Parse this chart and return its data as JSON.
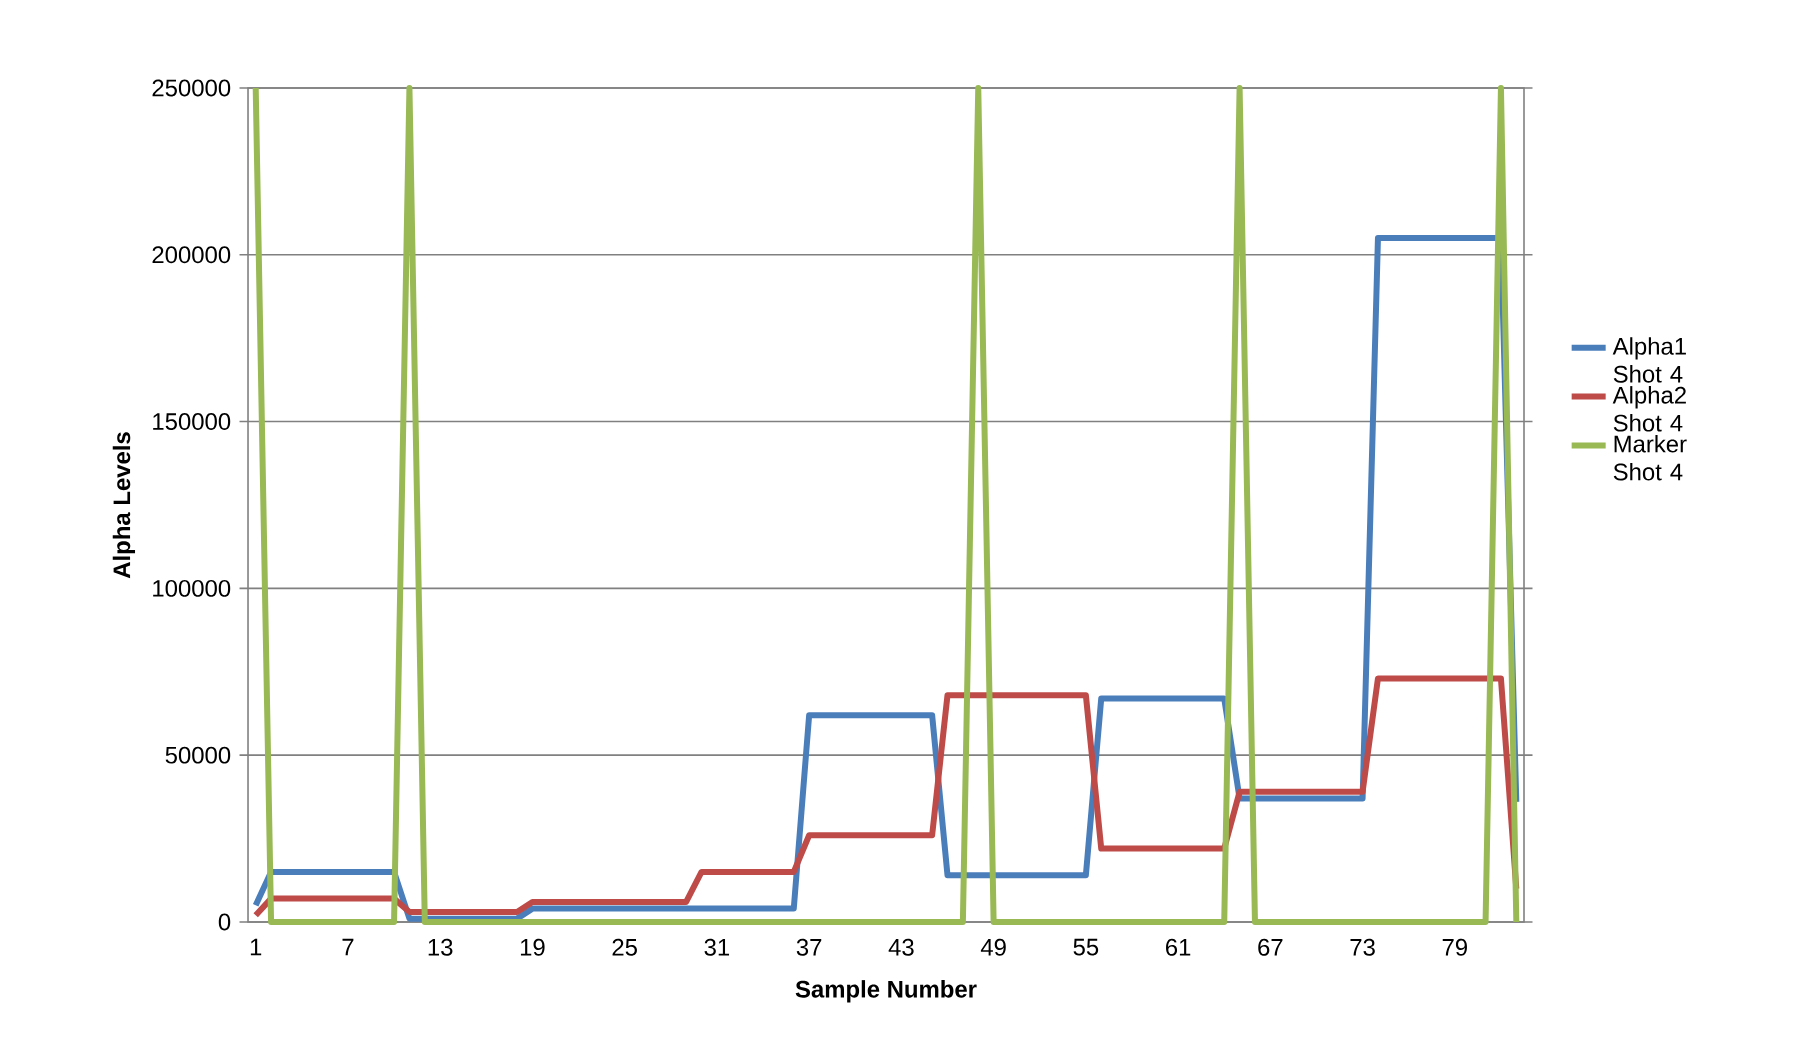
{
  "chart_data": {
    "type": "line",
    "xlabel": "Sample Number",
    "ylabel": "Alpha Levels",
    "categories": [
      "1",
      null,
      null,
      null,
      null,
      null,
      "7",
      null,
      null,
      null,
      null,
      null,
      "13",
      null,
      null,
      null,
      null,
      null,
      "19",
      null,
      null,
      null,
      null,
      null,
      "25",
      null,
      null,
      null,
      null,
      null,
      "31",
      null,
      null,
      null,
      null,
      null,
      "37",
      null,
      null,
      null,
      null,
      null,
      "43",
      null,
      null,
      null,
      null,
      null,
      "49",
      null,
      null,
      null,
      null,
      null,
      "55",
      null,
      null,
      null,
      null,
      null,
      "61",
      null,
      null,
      null,
      null,
      null,
      "67",
      null,
      null,
      null,
      null,
      null,
      "73",
      null,
      null,
      null,
      null,
      null,
      "79",
      null,
      null,
      null,
      null
    ],
    "ylim": [
      0,
      250000
    ],
    "yticks": [
      0,
      50000,
      100000,
      150000,
      200000,
      250000
    ],
    "grid": "y",
    "legend": "right",
    "marker": "none",
    "line_style": "solid",
    "series": [
      {
        "name": "Alpha1 Shot 4",
        "color": "#4a7ebb",
        "values": [
          5000,
          15000,
          15000,
          15000,
          15000,
          15000,
          15000,
          15000,
          15000,
          15000,
          1000,
          1000,
          1000,
          1000,
          1000,
          1000,
          1000,
          1000,
          4000,
          4000,
          4000,
          4000,
          4000,
          4000,
          4000,
          4000,
          4000,
          4000,
          4000,
          4000,
          4000,
          4000,
          4000,
          4000,
          4000,
          4000,
          62000,
          62000,
          62000,
          62000,
          62000,
          62000,
          62000,
          62000,
          62000,
          14000,
          14000,
          14000,
          14000,
          14000,
          14000,
          14000,
          14000,
          14000,
          14000,
          67000,
          67000,
          67000,
          67000,
          67000,
          67000,
          67000,
          67000,
          67000,
          37000,
          37000,
          37000,
          37000,
          37000,
          37000,
          37000,
          37000,
          37000,
          205000,
          205000,
          205000,
          205000,
          205000,
          205000,
          205000,
          205000,
          205000,
          36000
        ]
      },
      {
        "name": "Alpha2 Shot 4",
        "color": "#be4b48",
        "values": [
          2000,
          7000,
          7000,
          7000,
          7000,
          7000,
          7000,
          7000,
          7000,
          7000,
          3000,
          3000,
          3000,
          3000,
          3000,
          3000,
          3000,
          3000,
          6000,
          6000,
          6000,
          6000,
          6000,
          6000,
          6000,
          6000,
          6000,
          6000,
          6000,
          15000,
          15000,
          15000,
          15000,
          15000,
          15000,
          15000,
          26000,
          26000,
          26000,
          26000,
          26000,
          26000,
          26000,
          26000,
          26000,
          68000,
          68000,
          68000,
          68000,
          68000,
          68000,
          68000,
          68000,
          68000,
          68000,
          22000,
          22000,
          22000,
          22000,
          22000,
          22000,
          22000,
          22000,
          22000,
          39000,
          39000,
          39000,
          39000,
          39000,
          39000,
          39000,
          39000,
          39000,
          73000,
          73000,
          73000,
          73000,
          73000,
          73000,
          73000,
          73000,
          73000,
          10000
        ]
      },
      {
        "name": "Marker Shot 4",
        "color": "#98b954",
        "values": [
          250000,
          0,
          0,
          0,
          0,
          0,
          0,
          0,
          0,
          0,
          250000,
          0,
          0,
          0,
          0,
          0,
          0,
          0,
          0,
          0,
          0,
          0,
          0,
          0,
          0,
          0,
          0,
          0,
          0,
          0,
          0,
          0,
          0,
          0,
          0,
          0,
          0,
          0,
          0,
          0,
          0,
          0,
          0,
          0,
          0,
          0,
          0,
          250000,
          0,
          0,
          0,
          0,
          0,
          0,
          0,
          0,
          0,
          0,
          0,
          0,
          0,
          0,
          0,
          0,
          250000,
          0,
          0,
          0,
          0,
          0,
          0,
          0,
          0,
          0,
          0,
          0,
          0,
          0,
          0,
          0,
          0,
          250000,
          0
        ]
      }
    ]
  }
}
